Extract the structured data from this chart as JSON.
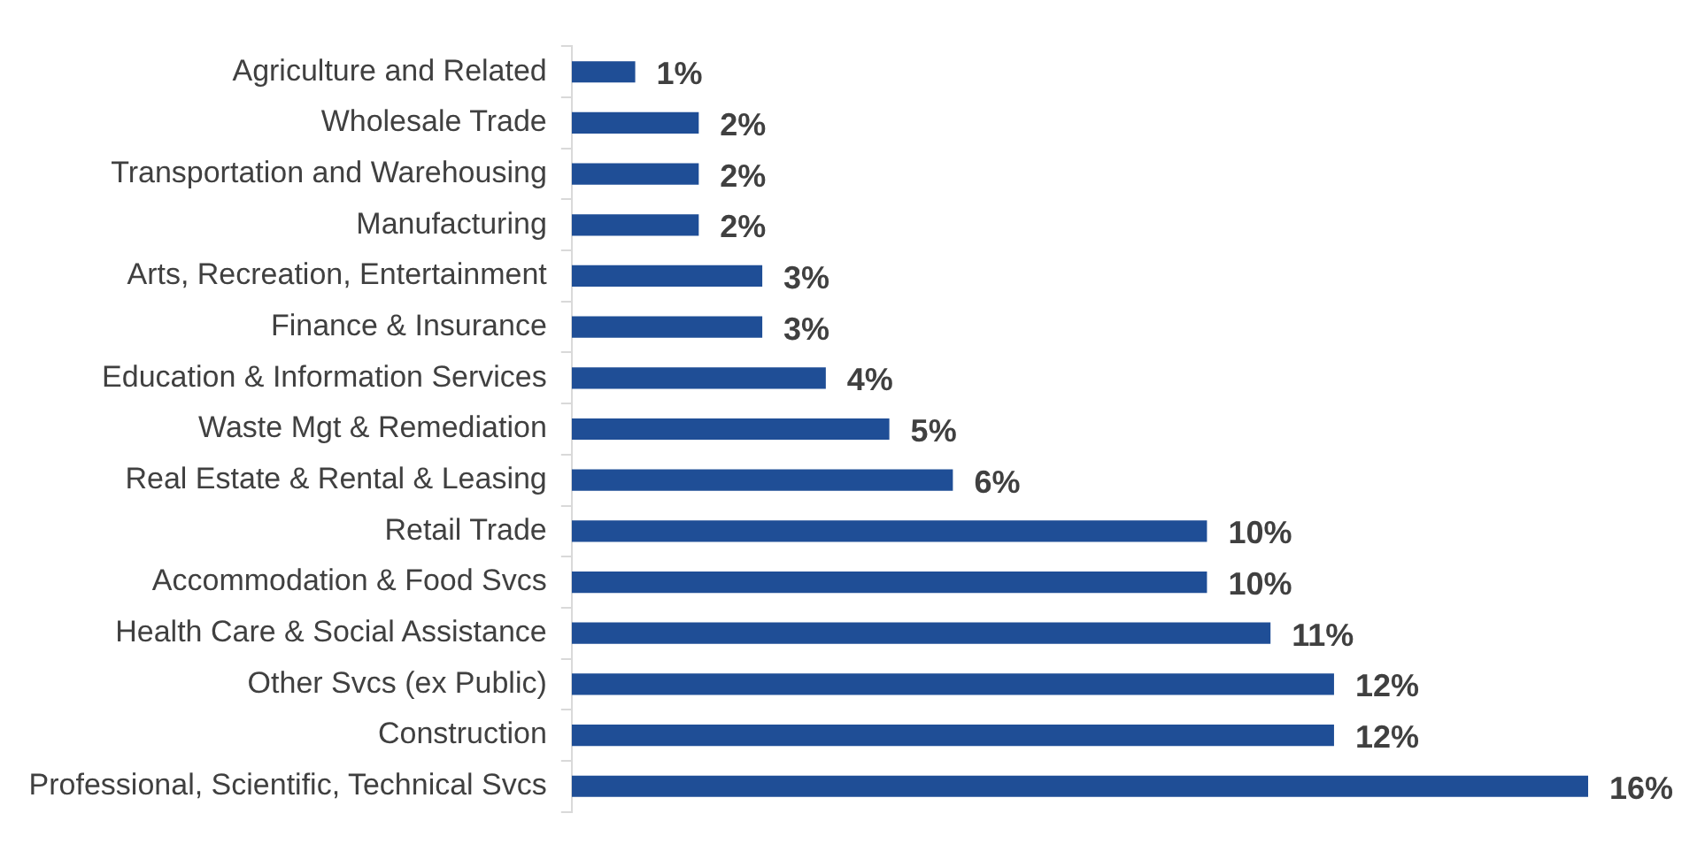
{
  "chart_data": {
    "type": "bar",
    "orientation": "horizontal",
    "categories": [
      "Agriculture and Related",
      "Wholesale Trade",
      "Transportation and Warehousing",
      "Manufacturing",
      "Arts, Recreation, Entertainment",
      "Finance & Insurance",
      "Education & Information Services",
      "Waste Mgt & Remediation",
      "Real Estate & Rental & Leasing",
      "Retail Trade",
      "Accommodation & Food Svcs",
      "Health Care & Social Assistance",
      "Other Svcs (ex Public)",
      "Construction",
      "Professional, Scientific, Technical Svcs"
    ],
    "values": [
      1,
      2,
      2,
      2,
      3,
      3,
      4,
      5,
      6,
      10,
      10,
      11,
      12,
      12,
      16
    ],
    "value_labels": [
      "1%",
      "2%",
      "2%",
      "2%",
      "3%",
      "3%",
      "4%",
      "5%",
      "6%",
      "10%",
      "10%",
      "11%",
      "12%",
      "12%",
      "16%"
    ],
    "color": "#1f4e96",
    "grid": false,
    "legend": false,
    "tick_labels": "y"
  }
}
